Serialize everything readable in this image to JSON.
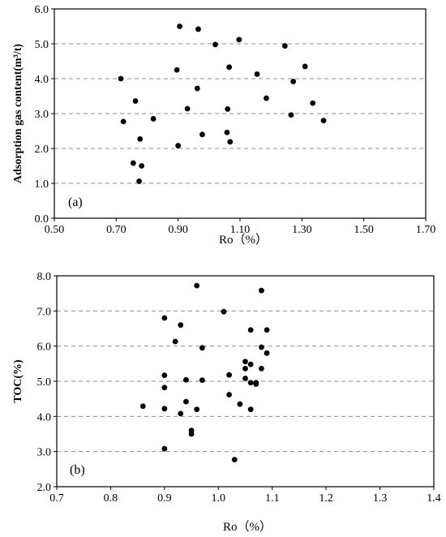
{
  "chart_data": [
    {
      "type": "scatter",
      "panel_label": "(a)",
      "xlabel": "Ro（%）",
      "ylabel": "Adsorption gas content(m³/t)",
      "xlim": [
        0.5,
        1.7
      ],
      "ylim": [
        0.0,
        6.0
      ],
      "xticks": [
        "0.50",
        "0.70",
        "0.90",
        "1.10",
        "1.30",
        "1.50",
        "1.70"
      ],
      "yticks": [
        "0.0",
        "1.0",
        "2.0",
        "3.0",
        "4.0",
        "5.0",
        "6.0"
      ],
      "grid": "horizontal dashed",
      "points": [
        {
          "x": 0.905,
          "y": 5.5
        },
        {
          "x": 0.965,
          "y": 5.42
        },
        {
          "x": 1.02,
          "y": 4.98
        },
        {
          "x": 1.097,
          "y": 5.12
        },
        {
          "x": 1.245,
          "y": 4.94
        },
        {
          "x": 0.715,
          "y": 4.0
        },
        {
          "x": 0.896,
          "y": 4.25
        },
        {
          "x": 1.065,
          "y": 4.33
        },
        {
          "x": 1.155,
          "y": 4.13
        },
        {
          "x": 1.31,
          "y": 4.35
        },
        {
          "x": 1.272,
          "y": 3.92
        },
        {
          "x": 0.962,
          "y": 3.72
        },
        {
          "x": 0.762,
          "y": 3.36
        },
        {
          "x": 1.185,
          "y": 3.44
        },
        {
          "x": 1.335,
          "y": 3.3
        },
        {
          "x": 0.93,
          "y": 3.14
        },
        {
          "x": 1.06,
          "y": 3.13
        },
        {
          "x": 1.265,
          "y": 2.96
        },
        {
          "x": 0.723,
          "y": 2.77
        },
        {
          "x": 0.82,
          "y": 2.85
        },
        {
          "x": 1.37,
          "y": 2.8
        },
        {
          "x": 1.058,
          "y": 2.46
        },
        {
          "x": 0.978,
          "y": 2.4
        },
        {
          "x": 0.777,
          "y": 2.27
        },
        {
          "x": 1.068,
          "y": 2.19
        },
        {
          "x": 0.9,
          "y": 2.08
        },
        {
          "x": 0.755,
          "y": 1.58
        },
        {
          "x": 0.782,
          "y": 1.5
        },
        {
          "x": 0.774,
          "y": 1.06
        }
      ]
    },
    {
      "type": "scatter",
      "panel_label": "(b)",
      "xlabel": "Ro（%）",
      "ylabel": "TOC(%)",
      "xlim": [
        0.7,
        1.4
      ],
      "ylim": [
        2.0,
        8.0
      ],
      "xticks": [
        "0.7",
        "0.8",
        "0.9",
        "1.0",
        "1.1",
        "1.2",
        "1.3",
        "1.4"
      ],
      "yticks": [
        "2.0",
        "3.0",
        "4.0",
        "5.0",
        "6.0",
        "7.0",
        "8.0"
      ],
      "grid": "horizontal dashed",
      "points": [
        {
          "x": 0.96,
          "y": 7.72
        },
        {
          "x": 1.08,
          "y": 7.58
        },
        {
          "x": 1.01,
          "y": 6.98
        },
        {
          "x": 0.9,
          "y": 6.8
        },
        {
          "x": 0.93,
          "y": 6.6
        },
        {
          "x": 1.06,
          "y": 6.46
        },
        {
          "x": 1.09,
          "y": 6.46
        },
        {
          "x": 0.92,
          "y": 6.13
        },
        {
          "x": 0.97,
          "y": 5.95
        },
        {
          "x": 1.08,
          "y": 5.97
        },
        {
          "x": 1.09,
          "y": 5.8
        },
        {
          "x": 1.05,
          "y": 5.56
        },
        {
          "x": 1.06,
          "y": 5.48
        },
        {
          "x": 1.05,
          "y": 5.36
        },
        {
          "x": 1.08,
          "y": 5.36
        },
        {
          "x": 0.9,
          "y": 5.17
        },
        {
          "x": 1.02,
          "y": 5.18
        },
        {
          "x": 1.05,
          "y": 5.08
        },
        {
          "x": 0.94,
          "y": 5.04
        },
        {
          "x": 0.97,
          "y": 5.03
        },
        {
          "x": 1.06,
          "y": 4.96
        },
        {
          "x": 1.07,
          "y": 4.96
        },
        {
          "x": 1.07,
          "y": 4.92
        },
        {
          "x": 0.9,
          "y": 4.82
        },
        {
          "x": 1.02,
          "y": 4.62
        },
        {
          "x": 0.94,
          "y": 4.42
        },
        {
          "x": 1.04,
          "y": 4.35
        },
        {
          "x": 0.86,
          "y": 4.29
        },
        {
          "x": 0.9,
          "y": 4.22
        },
        {
          "x": 0.96,
          "y": 4.2
        },
        {
          "x": 1.06,
          "y": 4.2
        },
        {
          "x": 0.93,
          "y": 4.08
        },
        {
          "x": 0.95,
          "y": 3.6
        },
        {
          "x": 0.95,
          "y": 3.5
        },
        {
          "x": 0.9,
          "y": 3.08
        },
        {
          "x": 1.03,
          "y": 2.77
        }
      ]
    }
  ]
}
